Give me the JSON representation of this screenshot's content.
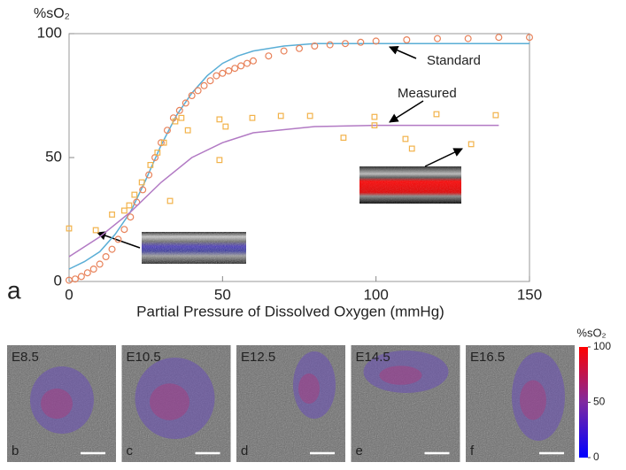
{
  "chart_data": {
    "type": "scatter",
    "panel_label": "a",
    "x_label": "Partial Pressure of Dissolved Oxygen (mmHg)",
    "y_label": "%sO₂",
    "xlim": [
      0,
      150
    ],
    "xticks": [
      0,
      50,
      100,
      150
    ],
    "ylim": [
      0,
      100
    ],
    "yticks": [
      0,
      50,
      100
    ],
    "series": [
      {
        "name": "Standard",
        "color": "#e8825a",
        "marker": "circle",
        "x": [
          0,
          2,
          4,
          6,
          8,
          10,
          12,
          14,
          16,
          18,
          20,
          22,
          24,
          26,
          28,
          30,
          32,
          34,
          36,
          38,
          40,
          42,
          44,
          46,
          48,
          50,
          52,
          54,
          56,
          58,
          60,
          65,
          70,
          75,
          80,
          85,
          90,
          95,
          100,
          110,
          120,
          130,
          140,
          150
        ],
        "values": [
          0.5,
          1,
          2,
          3.5,
          5,
          7,
          10,
          13,
          17,
          21,
          26,
          32,
          37,
          43,
          50,
          56,
          61,
          66,
          69,
          72,
          75,
          77,
          79,
          81,
          83,
          84,
          85,
          86,
          87,
          88,
          89,
          91,
          93,
          94,
          95,
          95.5,
          96,
          96.5,
          97,
          97.5,
          98,
          98,
          98.5,
          98.5
        ],
        "fit": {
          "color": "#5aaed6",
          "x": [
            0,
            5,
            10,
            15,
            20,
            25,
            30,
            35,
            40,
            45,
            50,
            55,
            60,
            70,
            80,
            100,
            150
          ],
          "values": [
            5,
            8,
            12,
            19,
            28,
            41,
            55,
            67,
            76,
            83,
            88,
            91,
            93,
            95,
            96,
            96,
            96
          ]
        }
      },
      {
        "name": "Measured",
        "color": "#f2b24a",
        "marker": "square",
        "x": [
          0,
          8.7,
          14,
          18,
          19.6,
          21.3,
          23.7,
          26.5,
          28.8,
          30.9,
          32.9,
          34.6,
          36.6,
          38.7,
          49,
          49,
          51,
          59.7,
          69,
          78.5,
          89.4,
          99.5,
          99.5,
          109.6,
          111.7,
          119.7,
          131,
          139
        ],
        "values": [
          21.4,
          20.7,
          27,
          28.6,
          30.7,
          35,
          40,
          47,
          52,
          56,
          32.5,
          64.6,
          66,
          61,
          65.4,
          49,
          62.5,
          66,
          66.8,
          66.8,
          58,
          66.4,
          63,
          57.5,
          53.6,
          67.5,
          55.4,
          67.1
        ],
        "fit": {
          "color": "#b27ac4",
          "x": [
            0,
            10,
            20,
            30,
            40,
            50,
            60,
            80,
            100,
            120,
            140
          ],
          "values": [
            10,
            18,
            28,
            40,
            50,
            56,
            60,
            62.5,
            63,
            63,
            63
          ]
        }
      }
    ]
  },
  "panels": [
    {
      "label": "b",
      "stage": "E8.5"
    },
    {
      "label": "c",
      "stage": "E10.5"
    },
    {
      "label": "d",
      "stage": "E12.5"
    },
    {
      "label": "e",
      "stage": "E14.5"
    },
    {
      "label": "f",
      "stage": "E16.5"
    }
  ],
  "colorbar": {
    "label": "%sO₂",
    "lim": [
      0,
      100
    ],
    "ticks": [
      0,
      50,
      100
    ]
  }
}
